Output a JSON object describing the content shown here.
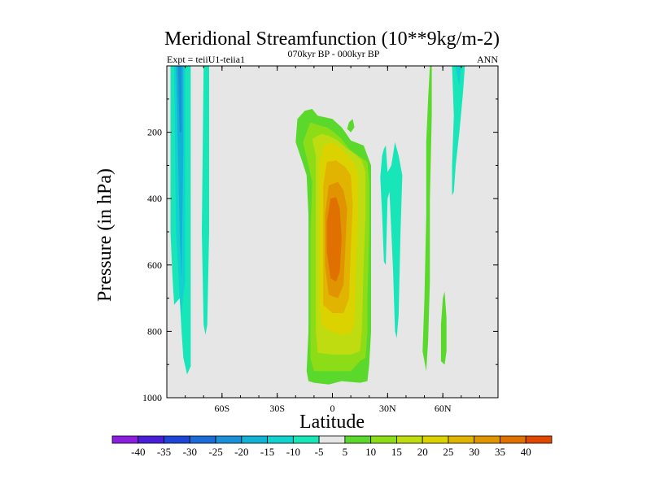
{
  "chart_data": {
    "type": "contour",
    "title": "Meridional Streamfunction (10**9kg/m-2)",
    "left_string": "Expt = teiiU1-teiia1",
    "center_string": "070kyr BP - 000kyr BP",
    "right_string": "ANN",
    "xlabel": "Latitude",
    "ylabel": "Pressure (in hPa)",
    "x_ticks": [
      {
        "value": -60,
        "label": "60S"
      },
      {
        "value": -30,
        "label": "30S"
      },
      {
        "value": 0,
        "label": "0"
      },
      {
        "value": 30,
        "label": "30N"
      },
      {
        "value": 60,
        "label": "60N"
      }
    ],
    "y_ticks": [
      {
        "value": 200,
        "label": "200"
      },
      {
        "value": 400,
        "label": "400"
      },
      {
        "value": 600,
        "label": "600"
      },
      {
        "value": 800,
        "label": "800"
      },
      {
        "value": 1000,
        "label": "1000"
      }
    ],
    "xlim": [
      -90,
      90
    ],
    "ylim": [
      1000,
      0
    ],
    "y_reversed": true,
    "background_color": "#e6e6e6",
    "colorbar": {
      "levels": [
        "-40",
        "-35",
        "-30",
        "-25",
        "-20",
        "-15",
        "-10",
        "-5",
        "5",
        "10",
        "15",
        "20",
        "25",
        "30",
        "35",
        "40"
      ],
      "colors": [
        "#8a1fe0",
        "#4a1ed8",
        "#1e46d6",
        "#1c6cd8",
        "#1a90d8",
        "#12b2d6",
        "#12d2d0",
        "#18e6b8",
        "#e6e6e6",
        "#5ad82c",
        "#8cdc18",
        "#bedc10",
        "#dcd200",
        "#e0b400",
        "#e09400",
        "#e07000",
        "#e04800"
      ]
    },
    "contour_regions": [
      {
        "name": "southern-negative-cell",
        "color": "#18e6b8",
        "points": [
          [
            -88,
            0
          ],
          [
            -77,
            0
          ],
          [
            -77,
            800
          ],
          [
            -77,
            905
          ],
          [
            -79,
            930
          ],
          [
            -81,
            880
          ],
          [
            -82,
            800
          ],
          [
            -83,
            700
          ],
          [
            -86,
            720
          ],
          [
            -87,
            630
          ],
          [
            -88,
            500
          ]
        ]
      },
      {
        "name": "southern-negative-band",
        "color": "#18e6b8",
        "points": [
          [
            -70,
            0
          ],
          [
            -67,
            0
          ],
          [
            -67,
            500
          ],
          [
            -68,
            780
          ],
          [
            -69,
            810
          ],
          [
            -70,
            780
          ],
          [
            -71,
            500
          ]
        ]
      },
      {
        "name": "southern-minus10",
        "color": "#12d2d0",
        "points": [
          [
            -86,
            0
          ],
          [
            -80,
            0
          ],
          [
            -80,
            400
          ],
          [
            -80,
            650
          ],
          [
            -81,
            690
          ],
          [
            -82,
            750
          ],
          [
            -83,
            700
          ],
          [
            -85,
            500
          ]
        ]
      },
      {
        "name": "southern-minus15",
        "color": "#12b2d6",
        "points": [
          [
            -85,
            0
          ],
          [
            -81,
            0
          ],
          [
            -81,
            250
          ],
          [
            -82,
            650
          ],
          [
            -83,
            500
          ],
          [
            -84,
            250
          ]
        ]
      },
      {
        "name": "southern-minus20",
        "color": "#1a90d8",
        "points": [
          [
            -84,
            0
          ],
          [
            -82,
            0
          ],
          [
            -82,
            200
          ],
          [
            -83,
            200
          ]
        ]
      },
      {
        "name": "hadley-cell-5",
        "color": "#5ad82c",
        "points": [
          [
            -20,
            230
          ],
          [
            -19,
            160
          ],
          [
            -15,
            135
          ],
          [
            -11,
            130
          ],
          [
            -8,
            150
          ],
          [
            0,
            160
          ],
          [
            5,
            185
          ],
          [
            7,
            200
          ],
          [
            10,
            225
          ],
          [
            17,
            240
          ],
          [
            19,
            270
          ],
          [
            21,
            300
          ],
          [
            21,
            350
          ],
          [
            21,
            450
          ],
          [
            21,
            700
          ],
          [
            21,
            800
          ],
          [
            20,
            900
          ],
          [
            19,
            950
          ],
          [
            15,
            955
          ],
          [
            5,
            950
          ],
          [
            -2,
            960
          ],
          [
            -10,
            955
          ],
          [
            -13,
            950
          ],
          [
            -14,
            920
          ],
          [
            -13,
            800
          ],
          [
            -13,
            650
          ],
          [
            -13,
            450
          ],
          [
            -14,
            330
          ],
          [
            -16,
            295
          ]
        ]
      },
      {
        "name": "hadley-cell-10",
        "color": "#8cdc18",
        "points": [
          [
            -16,
            230
          ],
          [
            -12,
            170
          ],
          [
            -7,
            180
          ],
          [
            -3,
            185
          ],
          [
            1,
            200
          ],
          [
            5,
            220
          ],
          [
            9,
            250
          ],
          [
            14,
            270
          ],
          [
            19,
            290
          ],
          [
            20,
            350
          ],
          [
            20,
            500
          ],
          [
            19,
            700
          ],
          [
            19,
            800
          ],
          [
            18,
            880
          ],
          [
            15,
            890
          ],
          [
            10,
            920
          ],
          [
            0,
            920
          ],
          [
            -10,
            920
          ],
          [
            -12,
            880
          ],
          [
            -12,
            700
          ],
          [
            -12,
            500
          ],
          [
            -11,
            350
          ],
          [
            -13,
            300
          ]
        ]
      },
      {
        "name": "hadley-cell-15",
        "color": "#bedc10",
        "points": [
          [
            -11,
            220
          ],
          [
            -6,
            205
          ],
          [
            -2,
            210
          ],
          [
            3,
            225
          ],
          [
            7,
            245
          ],
          [
            12,
            265
          ],
          [
            16,
            285
          ],
          [
            18,
            320
          ],
          [
            18,
            450
          ],
          [
            17,
            600
          ],
          [
            16,
            800
          ],
          [
            15,
            860
          ],
          [
            10,
            870
          ],
          [
            0,
            870
          ],
          [
            -8,
            865
          ],
          [
            -9,
            800
          ],
          [
            -9,
            600
          ],
          [
            -9,
            400
          ],
          [
            -9,
            270
          ]
        ]
      },
      {
        "name": "hadley-cell-20",
        "color": "#dcd200",
        "points": [
          [
            -5,
            240
          ],
          [
            0,
            230
          ],
          [
            5,
            250
          ],
          [
            9,
            275
          ],
          [
            12,
            295
          ],
          [
            14,
            330
          ],
          [
            14,
            450
          ],
          [
            13,
            600
          ],
          [
            12,
            780
          ],
          [
            10,
            805
          ],
          [
            5,
            810
          ],
          [
            -1,
            800
          ],
          [
            -6,
            780
          ],
          [
            -7,
            700
          ],
          [
            -7,
            500
          ],
          [
            -7,
            350
          ],
          [
            -7,
            300
          ]
        ]
      },
      {
        "name": "hadley-cell-25",
        "color": "#e0b400",
        "points": [
          [
            -3,
            290
          ],
          [
            2,
            285
          ],
          [
            7,
            305
          ],
          [
            10,
            330
          ],
          [
            11,
            420
          ],
          [
            10,
            550
          ],
          [
            9,
            700
          ],
          [
            6,
            745
          ],
          [
            0,
            745
          ],
          [
            -5,
            720
          ],
          [
            -5,
            600
          ],
          [
            -5,
            450
          ],
          [
            -5,
            360
          ]
        ]
      },
      {
        "name": "hadley-cell-30",
        "color": "#e09400",
        "points": [
          [
            -2,
            360
          ],
          [
            3,
            350
          ],
          [
            6,
            375
          ],
          [
            8,
            430
          ],
          [
            7,
            550
          ],
          [
            6,
            660
          ],
          [
            3,
            700
          ],
          [
            -2,
            690
          ],
          [
            -4,
            600
          ],
          [
            -4,
            450
          ]
        ]
      },
      {
        "name": "hadley-cell-35",
        "color": "#e07000",
        "points": [
          [
            -1,
            400
          ],
          [
            2,
            395
          ],
          [
            4,
            430
          ],
          [
            5,
            520
          ],
          [
            4,
            620
          ],
          [
            2,
            650
          ],
          [
            -1,
            640
          ],
          [
            -3,
            560
          ],
          [
            -3,
            470
          ]
        ]
      },
      {
        "name": "small-positive-blob",
        "color": "#5ad82c",
        "points": [
          [
            9,
            170
          ],
          [
            11,
            160
          ],
          [
            12,
            185
          ],
          [
            10,
            200
          ],
          [
            8,
            190
          ]
        ]
      },
      {
        "name": "midlatitude-negative-bands",
        "color": "#18e6b8",
        "points": [
          [
            26,
            335
          ],
          [
            27,
            270
          ],
          [
            28,
            250
          ],
          [
            29,
            240
          ],
          [
            30,
            320
          ],
          [
            32,
            300
          ],
          [
            34,
            230
          ],
          [
            36,
            270
          ],
          [
            38,
            330
          ],
          [
            37,
            500
          ],
          [
            36,
            750
          ],
          [
            35,
            820
          ],
          [
            34,
            800
          ],
          [
            33,
            620
          ],
          [
            32,
            500
          ],
          [
            31,
            380
          ],
          [
            30,
            400
          ],
          [
            29,
            600
          ],
          [
            28,
            590
          ],
          [
            27,
            450
          ]
        ]
      },
      {
        "name": "northern-positive-band",
        "color": "#5ad82c",
        "points": [
          [
            49,
            860
          ],
          [
            50,
            700
          ],
          [
            51,
            450
          ],
          [
            51,
            230
          ],
          [
            52,
            100
          ],
          [
            53,
            0
          ],
          [
            54,
            0
          ],
          [
            54,
            150
          ],
          [
            53,
            400
          ],
          [
            53,
            650
          ],
          [
            52,
            830
          ],
          [
            51,
            920
          ]
        ]
      },
      {
        "name": "northern-positive-blob",
        "color": "#5ad82c",
        "points": [
          [
            59,
            870
          ],
          [
            59,
            780
          ],
          [
            60,
            700
          ],
          [
            61,
            680
          ],
          [
            62,
            760
          ],
          [
            62,
            860
          ],
          [
            61,
            900
          ],
          [
            59,
            890
          ]
        ]
      },
      {
        "name": "northern-negative-band",
        "color": "#18e6b8",
        "points": [
          [
            65,
            0
          ],
          [
            72,
            0
          ],
          [
            71,
            80
          ],
          [
            70,
            140
          ],
          [
            69,
            200
          ],
          [
            67,
            300
          ],
          [
            66,
            380
          ],
          [
            65,
            390
          ],
          [
            65,
            300
          ],
          [
            66,
            150
          ]
        ]
      },
      {
        "name": "northern-minus10",
        "color": "#12d2d0",
        "points": [
          [
            67,
            0
          ],
          [
            70,
            0
          ],
          [
            69,
            60
          ],
          [
            68,
            40
          ]
        ]
      }
    ]
  }
}
